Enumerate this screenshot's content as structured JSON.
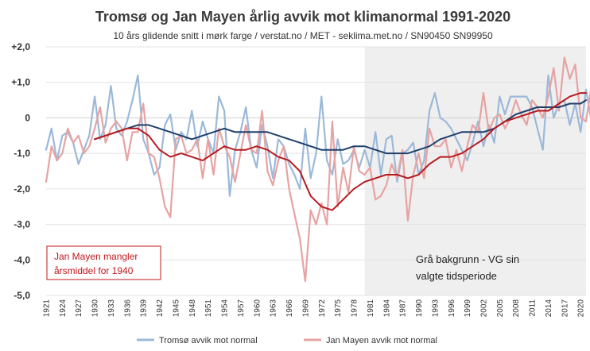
{
  "chart_data": {
    "type": "line",
    "title": "Tromsø og Jan Mayen årlig avvik mot klimanormal 1991-2020",
    "subtitle": "10 års glidende snitt i mørk farge / verstat.no / MET - seklima.met.no / SN90450 SN99950",
    "xlabel": "",
    "ylabel": "",
    "xlim": [
      1921,
      2021
    ],
    "ylim": [
      -5,
      2
    ],
    "y_ticks": [
      "+2,0",
      "+1,0",
      "0",
      "-1,0",
      "-2,0",
      "-3,0",
      "-4,0",
      "-5,0"
    ],
    "x_ticks": [
      1921,
      1924,
      1927,
      1930,
      1933,
      1936,
      1939,
      1942,
      1945,
      1948,
      1951,
      1954,
      1957,
      1960,
      1963,
      1966,
      1969,
      1972,
      1975,
      1978,
      1981,
      1984,
      1987,
      1990,
      1993,
      1996,
      1999,
      2002,
      2005,
      2008,
      2011,
      2014,
      2017,
      2020
    ],
    "shaded_period": [
      1980,
      2021
    ],
    "colors": {
      "tromso": "#9cb9d9",
      "tromso_ma": "#1f3f6b",
      "janmayen": "#e7a3a3",
      "janmayen_ma": "#b51a20",
      "shade": "#efefef",
      "annotation": "#c0171d"
    },
    "series": [
      {
        "name": "Tromsø avvik mot normal",
        "start_year": 1921,
        "values": [
          -0.9,
          -0.3,
          -1.2,
          -0.5,
          -0.4,
          -0.7,
          -1.3,
          -0.9,
          -0.5,
          0.6,
          -0.6,
          -0.2,
          0.9,
          -0.3,
          -0.5,
          -0.1,
          0.5,
          1.2,
          -0.6,
          -1.0,
          -1.6,
          -1.4,
          -0.2,
          0.1,
          -0.9,
          -0.4,
          -0.6,
          0.2,
          -0.8,
          -0.1,
          -0.6,
          -1.0,
          0.6,
          0.2,
          -2.2,
          -0.9,
          -0.4,
          0.3,
          -0.9,
          -1.4,
          -0.2,
          -0.8,
          -1.7,
          -0.6,
          -0.8,
          -1.3,
          -1.6,
          -2.0,
          -0.3,
          -1.7,
          -1.0,
          0.6,
          -1.2,
          -1.6,
          -0.6,
          -1.3,
          -1.2,
          -0.9,
          -1.4,
          -0.9,
          -1.4,
          -0.4,
          -1.6,
          -0.6,
          -0.5,
          -1.8,
          -1.0,
          -0.9,
          -0.7,
          -1.6,
          -1.2,
          0.2,
          0.7,
          0.0,
          -0.1,
          -0.3,
          -0.6,
          -0.9,
          -1.2,
          -0.7,
          -0.1,
          -0.8,
          -0.2,
          -0.7,
          0.6,
          0.1,
          0.6,
          0.6,
          0.6,
          0.6,
          0.3,
          -0.3,
          -0.9,
          1.2,
          0.0,
          0.4,
          0.5,
          -0.2,
          0.4,
          -0.4,
          0.8,
          -0.1
        ]
      },
      {
        "name": "Jan Mayen avvik mot normal",
        "start_year": 1921,
        "values": [
          -1.8,
          -0.8,
          -1.2,
          -1.0,
          -0.3,
          -0.7,
          -0.5,
          -1.0,
          -0.8,
          -0.3,
          0.3,
          -0.7,
          -0.3,
          -0.1,
          -0.3,
          -1.2,
          -0.4,
          -0.4,
          0.4,
          -1.0,
          -1.1,
          -1.7,
          -2.5,
          -2.8,
          -0.6,
          -0.5,
          -1.0,
          -0.9,
          -0.6,
          -1.7,
          -0.6,
          -1.6,
          -0.3,
          -0.8,
          -1.1,
          -1.8,
          -1.0,
          -0.2,
          -0.9,
          -1.0,
          0.2,
          -1.5,
          -1.9,
          -1.2,
          -0.8,
          -2.0,
          -2.7,
          -3.4,
          -4.6,
          -2.6,
          -3.0,
          -2.4,
          -3.0,
          -0.1,
          -2.5,
          -1.4,
          -2.1,
          -0.8,
          -1.5,
          -1.6,
          -1.4,
          -2.3,
          -2.2,
          -1.9,
          -1.3,
          -1.7,
          -0.9,
          -2.9,
          -1.6,
          -1.0,
          -1.7,
          -0.3,
          -0.8,
          -0.8,
          -0.6,
          -1.4,
          -0.9,
          -1.5,
          -0.8,
          -0.2,
          -0.4,
          0.7,
          -0.4,
          0.0,
          0.1,
          -0.3,
          0.0,
          0.5,
          0.1,
          -0.2,
          0.5,
          0.3,
          0.0,
          0.6,
          1.4,
          0.2,
          1.7,
          1.1,
          1.5,
          0.0,
          -0.1,
          0.9,
          0.7
        ]
      },
      {
        "name": "",
        "smoothed_of": "Tromsø",
        "x": [
          1930,
          1932,
          1934,
          1936,
          1938,
          1940,
          1942,
          1944,
          1946,
          1948,
          1950,
          1952,
          1954,
          1956,
          1958,
          1960,
          1962,
          1964,
          1966,
          1968,
          1970,
          1972,
          1974,
          1976,
          1978,
          1980,
          1982,
          1984,
          1986,
          1988,
          1990,
          1992,
          1994,
          1996,
          1998,
          2000,
          2002,
          2004,
          2006,
          2008,
          2010,
          2012,
          2014,
          2016,
          2018,
          2020,
          2021
        ],
        "values": [
          -0.6,
          -0.5,
          -0.4,
          -0.3,
          -0.2,
          -0.2,
          -0.3,
          -0.4,
          -0.5,
          -0.6,
          -0.5,
          -0.4,
          -0.3,
          -0.4,
          -0.4,
          -0.4,
          -0.4,
          -0.5,
          -0.6,
          -0.7,
          -0.8,
          -0.9,
          -0.9,
          -0.9,
          -0.8,
          -0.8,
          -0.9,
          -1.0,
          -1.0,
          -1.0,
          -0.9,
          -0.8,
          -0.6,
          -0.5,
          -0.4,
          -0.4,
          -0.4,
          -0.3,
          -0.1,
          0.1,
          0.2,
          0.3,
          0.3,
          0.3,
          0.4,
          0.4,
          0.5
        ]
      },
      {
        "name": "",
        "smoothed_of": "Jan Mayen",
        "x": [
          1930,
          1932,
          1934,
          1936,
          1938,
          1940,
          1942,
          1944,
          1946,
          1948,
          1950,
          1952,
          1954,
          1956,
          1958,
          1960,
          1962,
          1964,
          1966,
          1968,
          1970,
          1972,
          1974,
          1976,
          1978,
          1980,
          1982,
          1984,
          1986,
          1988,
          1990,
          1992,
          1994,
          1996,
          1998,
          2000,
          2002,
          2004,
          2006,
          2008,
          2010,
          2012,
          2014,
          2016,
          2018,
          2020,
          2021
        ],
        "values": [
          -0.6,
          -0.5,
          -0.4,
          -0.3,
          -0.3,
          -0.5,
          -0.9,
          -1.1,
          -1.0,
          -1.1,
          -1.2,
          -1.0,
          -0.8,
          -0.9,
          -0.9,
          -0.8,
          -0.9,
          -1.1,
          -1.2,
          -1.5,
          -2.2,
          -2.5,
          -2.6,
          -2.3,
          -2.0,
          -1.8,
          -1.7,
          -1.6,
          -1.6,
          -1.7,
          -1.6,
          -1.3,
          -1.1,
          -1.1,
          -1.0,
          -0.8,
          -0.6,
          -0.3,
          -0.1,
          0.0,
          0.1,
          0.2,
          0.2,
          0.4,
          0.6,
          0.7,
          0.7
        ]
      }
    ],
    "legend": [
      {
        "label": "Tromsø avvik mot normal",
        "color": "#9cb9d9"
      },
      {
        "label": "Jan Mayen avvik mot normal",
        "color": "#e7a3a3"
      }
    ],
    "legend_position": "bottom",
    "annotations": {
      "jan_mayen_note_line1": "Jan Mayen mangler",
      "jan_mayen_note_line2": "årsmiddel for 1940",
      "shade_note_line1": "Grå bakgrunn - VG sin",
      "shade_note_line2": "valgte tidsperiode"
    }
  }
}
